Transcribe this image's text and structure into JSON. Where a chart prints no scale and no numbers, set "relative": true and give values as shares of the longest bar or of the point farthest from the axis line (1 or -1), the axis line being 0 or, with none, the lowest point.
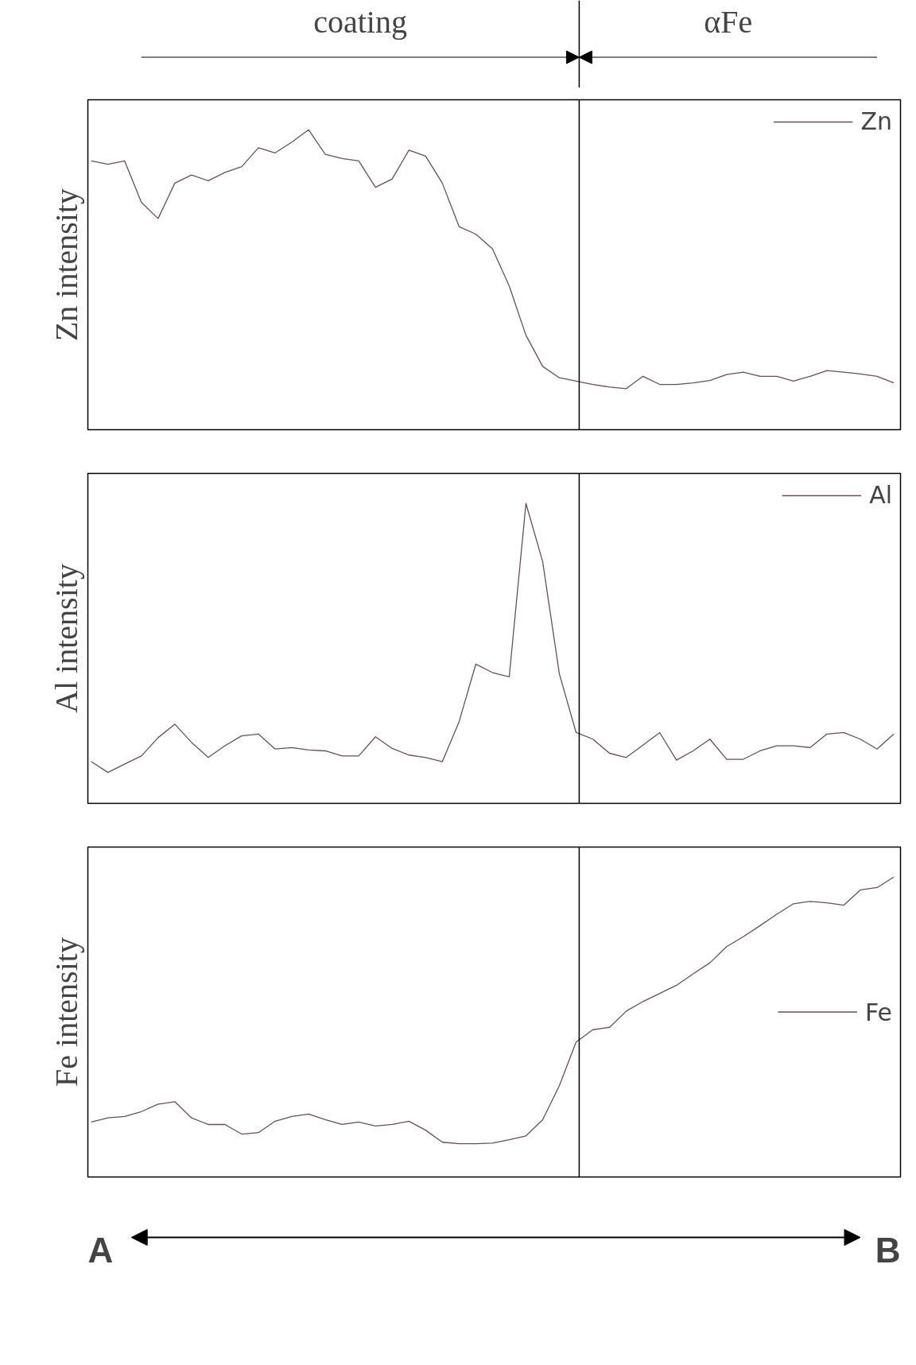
{
  "chart_data": [
    {
      "type": "line",
      "relative": true,
      "ylabel": "Zn intensity",
      "legend": "top right",
      "tick_labels": false,
      "grid": false,
      "categories": [
        null,
        null,
        null,
        null,
        null,
        null,
        null,
        null,
        null,
        null,
        null,
        null,
        null,
        null,
        null,
        null,
        null,
        null,
        null,
        null,
        null,
        null,
        null,
        null,
        null,
        null,
        null,
        null,
        null,
        null,
        null,
        null,
        null,
        null,
        null,
        null,
        null,
        null,
        null,
        null,
        null,
        null,
        null,
        null,
        null,
        null,
        null,
        null,
        null
      ],
      "series": [
        {
          "name": "Zn",
          "color": "#6b5050",
          "values": [
            0.896,
            0.885,
            0.896,
            0.758,
            0.704,
            0.822,
            0.849,
            0.83,
            0.858,
            0.877,
            0.94,
            0.923,
            0.959,
            1.0,
            0.918,
            0.904,
            0.896,
            0.808,
            0.836,
            0.932,
            0.912,
            0.822,
            0.677,
            0.652,
            0.603,
            0.479,
            0.315,
            0.211,
            0.173,
            0.162,
            0.151,
            0.142,
            0.137,
            0.178,
            0.151,
            0.151,
            0.156,
            0.164,
            0.184,
            0.192,
            0.178,
            0.178,
            0.162,
            0.178,
            0.197,
            0.192,
            0.186,
            0.178,
            0.156
          ]
        }
      ],
      "annotations": [
        "coating",
        "αFe"
      ]
    },
    {
      "type": "line",
      "relative": true,
      "ylabel": "Al intensity",
      "legend": "top right",
      "tick_labels": false,
      "grid": false,
      "categories": [
        null,
        null,
        null,
        null,
        null,
        null,
        null,
        null,
        null,
        null,
        null,
        null,
        null,
        null,
        null,
        null,
        null,
        null,
        null,
        null,
        null,
        null,
        null,
        null,
        null,
        null,
        null,
        null,
        null,
        null,
        null,
        null,
        null,
        null,
        null,
        null,
        null,
        null,
        null,
        null,
        null,
        null,
        null,
        null,
        null,
        null,
        null,
        null,
        null
      ],
      "series": [
        {
          "name": "Al",
          "color": "#6b5050",
          "values": [
            0.139,
            0.103,
            0.131,
            0.158,
            0.219,
            0.264,
            0.203,
            0.153,
            0.192,
            0.225,
            0.231,
            0.181,
            0.186,
            0.178,
            0.175,
            0.158,
            0.158,
            0.222,
            0.183,
            0.161,
            0.153,
            0.139,
            0.272,
            0.464,
            0.436,
            0.422,
            1.0,
            0.806,
            0.431,
            0.236,
            0.214,
            0.167,
            0.153,
            0.194,
            0.236,
            0.144,
            0.175,
            0.214,
            0.147,
            0.147,
            0.175,
            0.192,
            0.192,
            0.186,
            0.231,
            0.236,
            0.214,
            0.181,
            0.231
          ]
        }
      ]
    },
    {
      "type": "line",
      "relative": true,
      "ylabel": "Fe intensity",
      "legend": "right",
      "tick_labels": false,
      "grid": false,
      "categories": [
        null,
        null,
        null,
        null,
        null,
        null,
        null,
        null,
        null,
        null,
        null,
        null,
        null,
        null,
        null,
        null,
        null,
        null,
        null,
        null,
        null,
        null,
        null,
        null,
        null,
        null,
        null,
        null,
        null,
        null,
        null,
        null,
        null,
        null,
        null,
        null,
        null,
        null,
        null,
        null,
        null,
        null,
        null,
        null,
        null,
        null,
        null,
        null,
        null
      ],
      "series": [
        {
          "name": "Fe",
          "color": "#6b5050",
          "values": [
            0.183,
            0.197,
            0.202,
            0.218,
            0.243,
            0.251,
            0.197,
            0.175,
            0.175,
            0.143,
            0.148,
            0.186,
            0.202,
            0.21,
            0.191,
            0.175,
            0.183,
            0.17,
            0.175,
            0.186,
            0.156,
            0.116,
            0.111,
            0.111,
            0.113,
            0.124,
            0.137,
            0.191,
            0.305,
            0.45,
            0.491,
            0.499,
            0.553,
            0.585,
            0.612,
            0.639,
            0.677,
            0.714,
            0.768,
            0.801,
            0.838,
            0.876,
            0.911,
            0.919,
            0.914,
            0.906,
            0.957,
            0.965,
            1.0
          ]
        }
      ],
      "annotations": [
        "A",
        "B"
      ]
    }
  ]
}
